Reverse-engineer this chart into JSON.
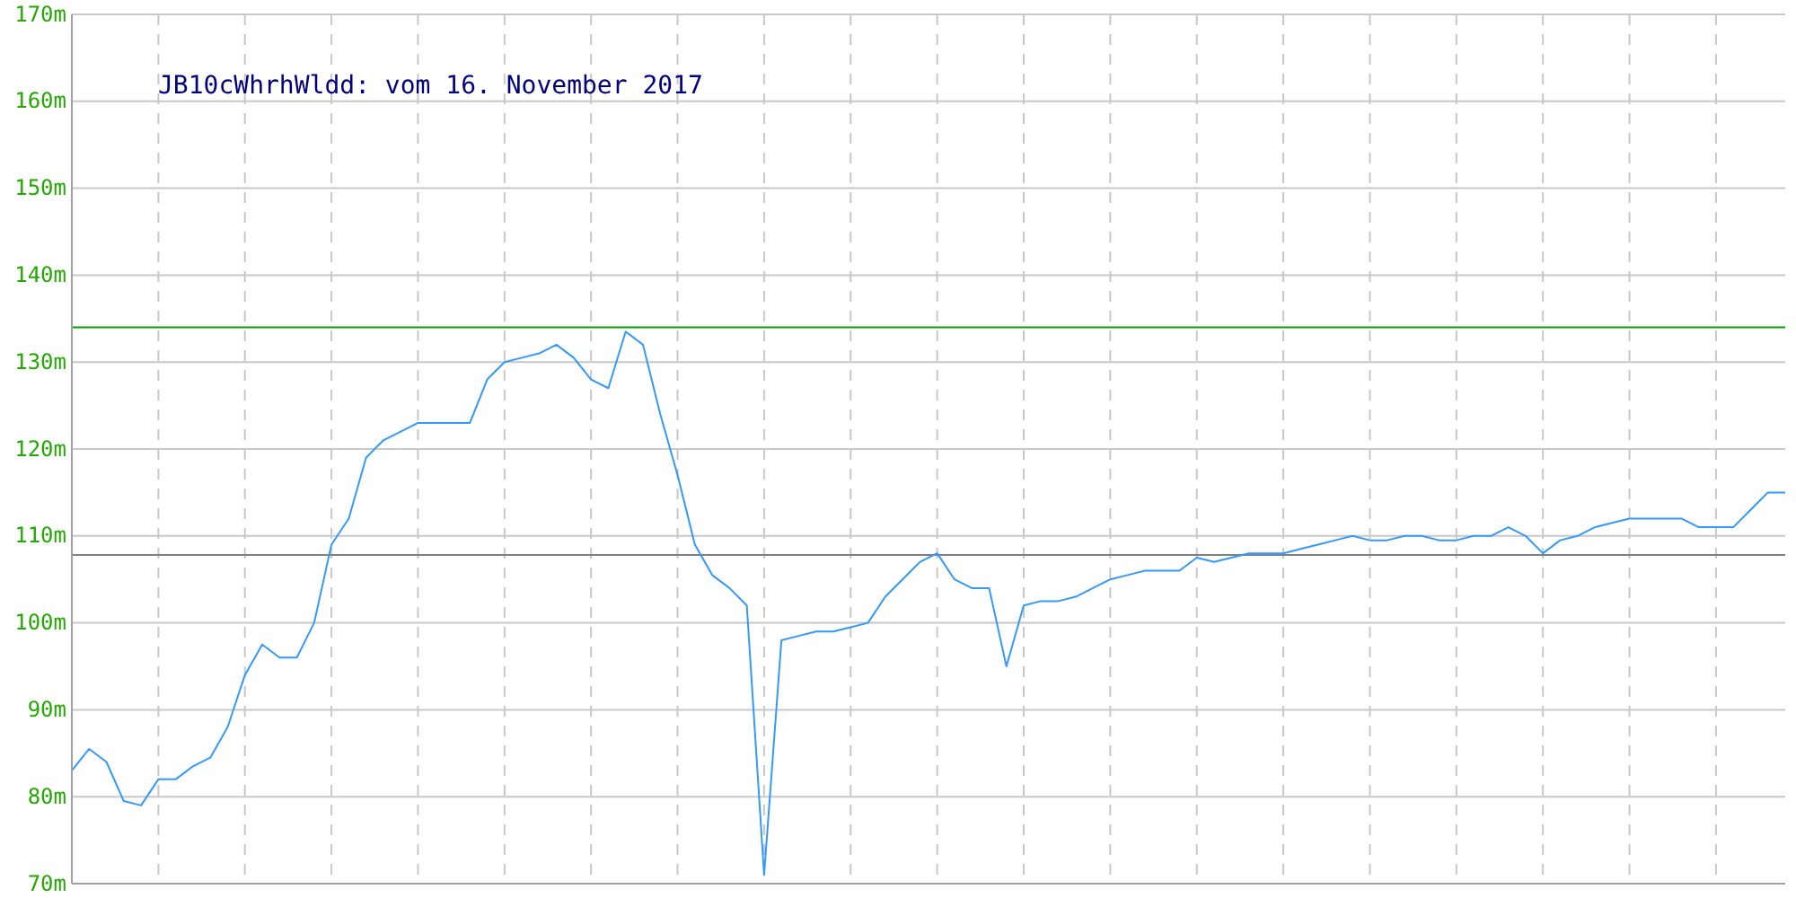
{
  "chart_data": {
    "type": "line",
    "title": "JB10cWhrhWldd: vom 16. November 2017",
    "categories": [
      null,
      null,
      null,
      null,
      null,
      null,
      null,
      null,
      null,
      null,
      null,
      null,
      null,
      null,
      null,
      null,
      null,
      null,
      null,
      null,
      null,
      null,
      null,
      null,
      null,
      null,
      null,
      null,
      null,
      null,
      null,
      null,
      null,
      null,
      null,
      null,
      null,
      null,
      null,
      null,
      null,
      null,
      null,
      null,
      null,
      null,
      null,
      null,
      null,
      null,
      null,
      null,
      null,
      null,
      null,
      null,
      null,
      null,
      null,
      null,
      null,
      null,
      null,
      null,
      null,
      null,
      null,
      null,
      null,
      null,
      null,
      null,
      null,
      null,
      null,
      null,
      null,
      null,
      null,
      null,
      null,
      null,
      null,
      null,
      null,
      null,
      null,
      null,
      null,
      null,
      null,
      null,
      null,
      null,
      null,
      null,
      null,
      null,
      null,
      null
    ],
    "series": [
      {
        "color": "#3399ff",
        "values": [
          83,
          85.5,
          84,
          79.5,
          79,
          82,
          82,
          83.5,
          84.5,
          88,
          94,
          97.5,
          96,
          96,
          100,
          109,
          112,
          119,
          121,
          122,
          123,
          123,
          123,
          123,
          128,
          130,
          130.5,
          131,
          132,
          130.5,
          128,
          127,
          133.5,
          132,
          124,
          117,
          109,
          105.5,
          104,
          102,
          71,
          98,
          98.5,
          99,
          99,
          99.5,
          100,
          103,
          105,
          107,
          108,
          105,
          104,
          104,
          95,
          102,
          102.5,
          102.5,
          103,
          104,
          105,
          105.5,
          106,
          106,
          106,
          107.5,
          107,
          107.5,
          108,
          108,
          108,
          108.5,
          109,
          109.5,
          110,
          109.5,
          109.5,
          110,
          110,
          109.5,
          109.5,
          110,
          110,
          111,
          110,
          108,
          109.5,
          110,
          111,
          111.5,
          112,
          112,
          112,
          112,
          111,
          111,
          111,
          113,
          115,
          115
        ]
      }
    ],
    "ylim": [
      70,
      170
    ],
    "yticks": [
      {
        "value": 70,
        "label": "70m"
      },
      {
        "value": 80,
        "label": "80m"
      },
      {
        "value": 90,
        "label": "90m"
      },
      {
        "value": 100,
        "label": "100m"
      },
      {
        "value": 110,
        "label": "110m"
      },
      {
        "value": 120,
        "label": "120m"
      },
      {
        "value": 130,
        "label": "130m"
      },
      {
        "value": 140,
        "label": "140m"
      },
      {
        "value": 150,
        "label": "150m"
      },
      {
        "value": 160,
        "label": "160m"
      },
      {
        "value": 170,
        "label": "170m"
      }
    ],
    "ref_lines": [
      {
        "axis": "y",
        "value": 134,
        "color": "#00a000"
      },
      {
        "axis": "y",
        "value": 107.8,
        "color": "#808080"
      }
    ],
    "grid": true
  }
}
